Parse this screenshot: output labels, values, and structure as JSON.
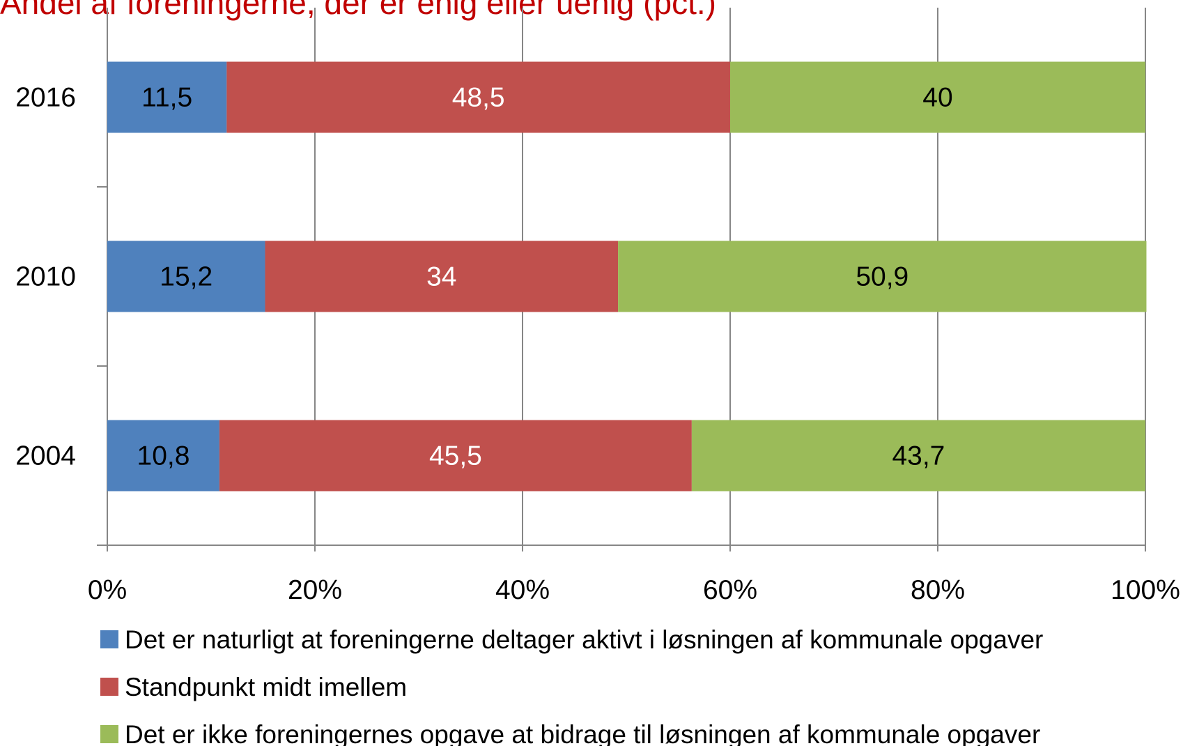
{
  "chart_data": {
    "type": "stacked_barh",
    "title": "Andel af foreningerne, der er enig eller uenig (pct.)",
    "categories": [
      "2016",
      "2010",
      "2004"
    ],
    "series": [
      {
        "name": "Det er naturligt at foreningerne deltager aktivt i løsningen af kommunale opgaver",
        "color": "#4f81bd",
        "label_color": "#000000",
        "values": [
          11.5,
          15.2,
          10.8
        ],
        "value_labels": [
          "11,5",
          "15,2",
          "10,8"
        ]
      },
      {
        "name": "Standpunkt midt imellem",
        "color": "#c0504d",
        "label_color": "#ffffff",
        "values": [
          48.5,
          34,
          45.5
        ],
        "value_labels": [
          "48,5",
          "34",
          "45,5"
        ]
      },
      {
        "name": "Det er ikke foreningernes opgave at bidrage til løsningen af kommunale opgaver",
        "color": "#9bbb59",
        "label_color": "#000000",
        "values": [
          40,
          50.9,
          43.7
        ],
        "value_labels": [
          "40",
          "50,9",
          "43,7"
        ]
      }
    ],
    "xlim": [
      0,
      100
    ],
    "xticks": [
      {
        "value": 0,
        "label": "0%"
      },
      {
        "value": 20,
        "label": "20%"
      },
      {
        "value": 40,
        "label": "40%"
      },
      {
        "value": 60,
        "label": "60%"
      },
      {
        "value": 80,
        "label": "80%"
      },
      {
        "value": 100,
        "label": "100%"
      }
    ],
    "grid": true,
    "legend": "bottom"
  }
}
